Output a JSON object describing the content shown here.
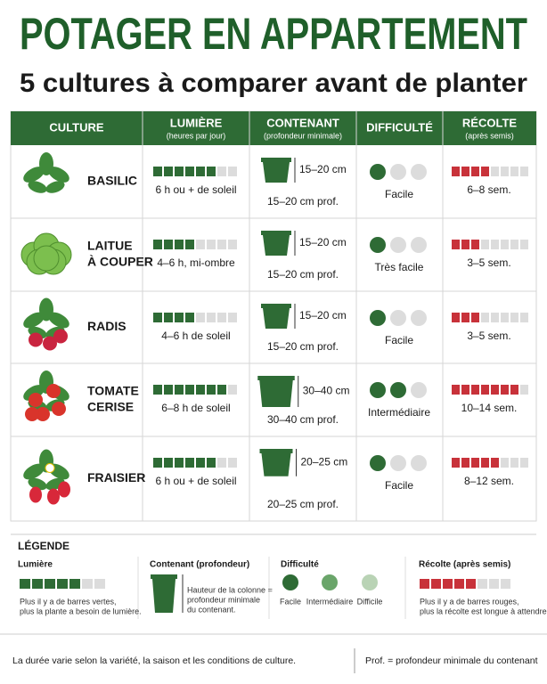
{
  "header": {
    "title": "POTAGER EN APPARTEMENT",
    "subtitle": "5 cultures à comparer avant de planter"
  },
  "table": {
    "columns": [
      {
        "title": "CULTURE"
      },
      {
        "title": "LUMIÈRE",
        "subtitle": "(heures par jour)"
      },
      {
        "title": "CONTENANT",
        "subtitle": "(profondeur minimale)"
      },
      {
        "title": "DIFFICULTÉ"
      },
      {
        "title": "RÉCOLTE",
        "subtitle": "(après semis)"
      }
    ],
    "segments": 8,
    "dots": 3,
    "rows": [
      {
        "name": [
          "BASILIC"
        ],
        "light_bars": 6,
        "light_label": "6 h ou + de soleil",
        "container_size": "15–20 cm",
        "container_label": "15–20 cm prof.",
        "difficulty_dots": 1,
        "difficulty_label": "Facile",
        "harvest_bars": 4,
        "harvest_label": "6–8 sem."
      },
      {
        "name": [
          "LAITUE",
          "À COUPER"
        ],
        "light_bars": 4,
        "light_label": "4–6 h, mi-ombre",
        "container_size": "15–20 cm",
        "container_label": "15–20 cm prof.",
        "difficulty_dots": 1,
        "difficulty_label": "Très facile",
        "harvest_bars": 3,
        "harvest_label": "3–5 sem."
      },
      {
        "name": [
          "RADIS"
        ],
        "light_bars": 4,
        "light_label": "4–6 h de soleil",
        "container_size": "15–20 cm",
        "container_label": "15–20 cm prof.",
        "difficulty_dots": 1,
        "difficulty_label": "Facile",
        "harvest_bars": 3,
        "harvest_label": "3–5 sem."
      },
      {
        "name": [
          "TOMATE",
          "CERISE"
        ],
        "light_bars": 7,
        "light_label": "6–8 h de soleil",
        "container_size": "30–40 cm",
        "container_label": "30–40 cm prof.",
        "difficulty_dots": 2,
        "difficulty_label": "Intermédiaire",
        "harvest_bars": 7,
        "harvest_label": "10–14 sem."
      },
      {
        "name": [
          "FRAISIER"
        ],
        "light_bars": 6,
        "light_label": "6 h ou + de soleil",
        "container_size": "20–25 cm",
        "container_label": "20–25 cm prof.",
        "difficulty_dots": 1,
        "difficulty_label": "Facile",
        "harvest_bars": 5,
        "harvest_label": "8–12 sem."
      }
    ]
  },
  "legend": {
    "title": "LÉGENDE",
    "light": {
      "title": "Lumière",
      "bars": 5,
      "segments": 7,
      "text": [
        "Plus il y a de barres vertes,",
        "plus la plante a besoin de lumière."
      ]
    },
    "container": {
      "title": "Contenant (profondeur)",
      "text": [
        "Hauteur de la colonne =",
        "profondeur minimale",
        "du contenant."
      ]
    },
    "difficulty": {
      "title": "Difficulté",
      "levels": [
        {
          "label": "Facile",
          "color": "#2e6b35"
        },
        {
          "label": "Intermédiaire",
          "color": "#6aa56a"
        },
        {
          "label": "Difficile",
          "color": "#b9d3b5"
        }
      ]
    },
    "harvest": {
      "title": "Récolte (après semis)",
      "bars": 5,
      "segments": 8,
      "text": [
        "Plus il y a de barres rouges,",
        "plus la récolte est longue à attendre."
      ]
    }
  },
  "footer": {
    "left": "La durée varie selon la variété, la saison et les conditions de culture.",
    "right": "Prof. = profondeur minimale du contenant"
  }
}
